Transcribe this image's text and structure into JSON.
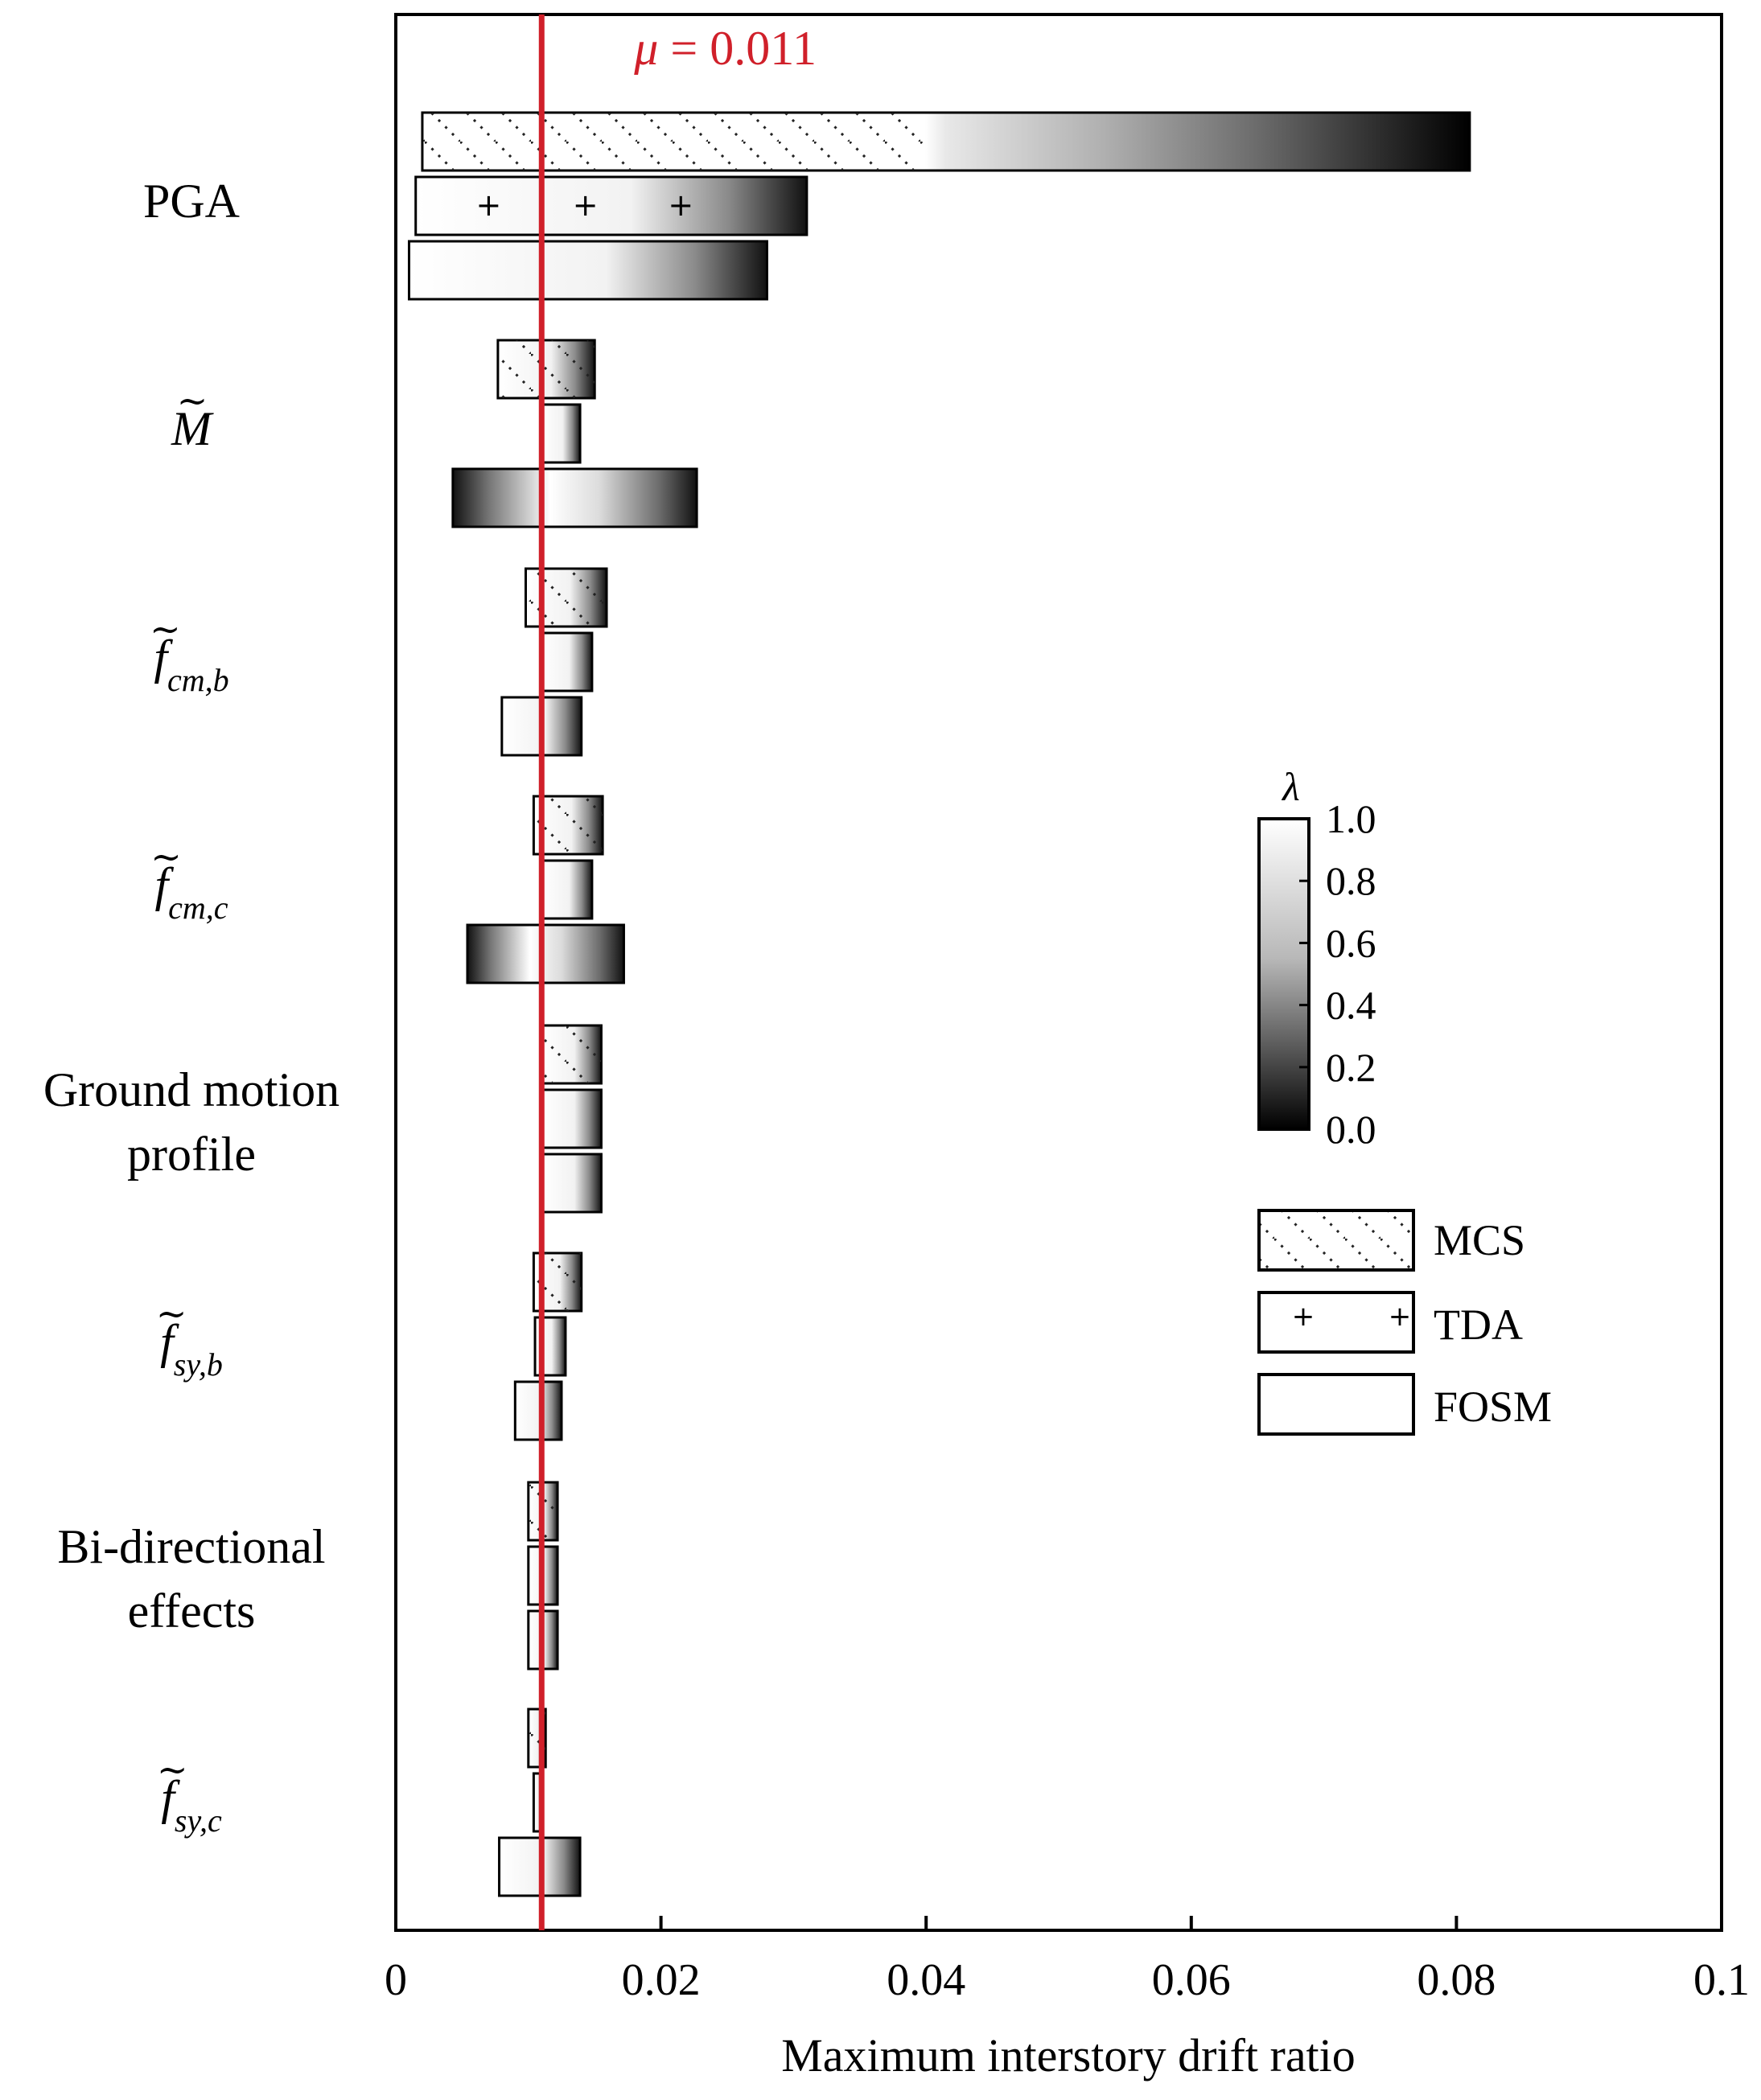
{
  "chart_data": {
    "type": "tornado",
    "xlabel": "Maximum interstory drift ratio",
    "xlim": [
      0,
      0.1
    ],
    "xticks": [
      0,
      0.02,
      0.04,
      0.06,
      0.08,
      0.1
    ],
    "xtick_labels": [
      "0",
      "0.02",
      "0.04",
      "0.06",
      "0.08",
      "0.1"
    ],
    "mean_line": {
      "value": 0.011,
      "symbol": "μ",
      "value_text": "= 0.011",
      "color": "#d0202a"
    },
    "methods": [
      "MCS",
      "TDA",
      "FOSM"
    ],
    "parameters": [
      {
        "id": "pga",
        "label": "PGA",
        "italic": false,
        "sub": "",
        "tilde": false,
        "bars": {
          "MCS": [
            0.002,
            0.081
          ],
          "TDA": [
            0.0015,
            0.031
          ],
          "FOSM": [
            0.001,
            0.028
          ]
        }
      },
      {
        "id": "m",
        "label": "M",
        "italic": true,
        "sub": "",
        "tilde": true,
        "bars": {
          "MCS": [
            0.0077,
            0.015
          ],
          "TDA": [
            0.011,
            0.0139
          ],
          "FOSM": [
            0.0043,
            0.0227
          ]
        }
      },
      {
        "id": "fcmb",
        "label": "f",
        "italic": true,
        "sub": "cm,b",
        "tilde": true,
        "bars": {
          "MCS": [
            0.0098,
            0.0159
          ],
          "TDA": [
            0.011,
            0.0148
          ],
          "FOSM": [
            0.008,
            0.014
          ]
        }
      },
      {
        "id": "fcmc",
        "label": "f",
        "italic": true,
        "sub": "cm,c",
        "tilde": true,
        "bars": {
          "MCS": [
            0.0104,
            0.0156
          ],
          "TDA": [
            0.011,
            0.0148
          ],
          "FOSM": [
            0.0054,
            0.0172
          ]
        }
      },
      {
        "id": "gmp",
        "label": "Ground motion profile",
        "label_lines": [
          "Ground motion",
          "profile"
        ],
        "italic": false,
        "sub": "",
        "tilde": false,
        "bars": {
          "MCS": [
            0.011,
            0.0155
          ],
          "TDA": [
            0.011,
            0.0155
          ],
          "FOSM": [
            0.011,
            0.0155
          ]
        }
      },
      {
        "id": "fsyb",
        "label": "f",
        "italic": true,
        "sub": "sy,b",
        "tilde": true,
        "bars": {
          "MCS": [
            0.0104,
            0.014
          ],
          "TDA": [
            0.0105,
            0.0128
          ],
          "FOSM": [
            0.009,
            0.0125
          ]
        }
      },
      {
        "id": "bde",
        "label": "Bi-directional effects",
        "label_lines": [
          "Bi-directional",
          "effects"
        ],
        "italic": false,
        "sub": "",
        "tilde": false,
        "bars": {
          "MCS": [
            0.01,
            0.0122
          ],
          "TDA": [
            0.01,
            0.0122
          ],
          "FOSM": [
            0.01,
            0.0122
          ]
        }
      },
      {
        "id": "fsyc",
        "label": "f",
        "italic": true,
        "sub": "sy,c",
        "tilde": true,
        "bars": {
          "MCS": [
            0.01,
            0.0113
          ],
          "TDA": [
            0.0104,
            0.011
          ],
          "FOSM": [
            0.0078,
            0.0139
          ]
        }
      }
    ],
    "colorbar": {
      "label": "λ",
      "ticks": [
        1.0,
        0.8,
        0.6,
        0.4,
        0.2,
        0.0
      ],
      "tick_labels": [
        "1.0",
        "0.8",
        "0.6",
        "0.4",
        "0.2",
        "0.0"
      ],
      "colormap": "gray"
    },
    "legend": [
      {
        "key": "MCS",
        "label": "MCS",
        "pattern": "hatch"
      },
      {
        "key": "TDA",
        "label": "TDA",
        "pattern": "plus"
      },
      {
        "key": "FOSM",
        "label": "FOSM",
        "pattern": "plain"
      }
    ]
  }
}
